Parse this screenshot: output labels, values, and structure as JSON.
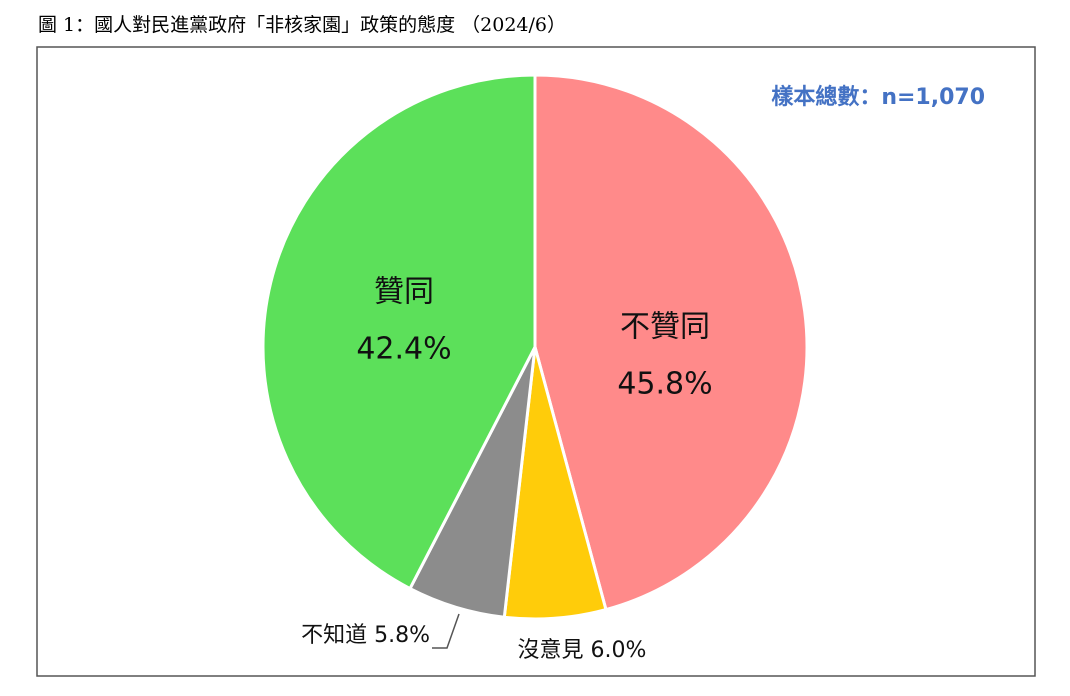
{
  "chart_data": {
    "type": "pie",
    "title": "圖 1：國人對民進黨政府「非核家園」政策的態度 （2024/6）",
    "annotation": "樣本總數：n=1,070",
    "categories": [
      "不贊同",
      "沒意見",
      "不知道",
      "贊同"
    ],
    "values": [
      45.8,
      6.0,
      5.8,
      42.4
    ],
    "value_labels": [
      "45.8%",
      "6.0%",
      "5.8%",
      "42.4%"
    ],
    "colors": [
      "#ff8a8a",
      "#ffcc0a",
      "#8c8c8c",
      "#5ce05a"
    ]
  }
}
